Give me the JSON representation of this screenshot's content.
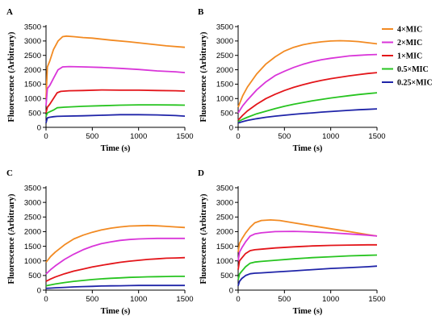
{
  "chart_data": {
    "type": "line",
    "legend": {
      "placement": "top-right",
      "entries": [
        {
          "label": "4×MIC",
          "color": "#F28A22"
        },
        {
          "label": "2×MIC",
          "color": "#D935D9"
        },
        {
          "label": "1×MIC",
          "color": "#E3151A"
        },
        {
          "label": "0.5×MIC",
          "color": "#27C420"
        },
        {
          "label": "0.25×MIC",
          "color": "#1F24A8"
        }
      ]
    },
    "panels": [
      {
        "letter": "A",
        "xlabel": "Time (s)",
        "ylabel": "Fluorescence (Arbitrary)",
        "xlim": [
          0,
          1500
        ],
        "ylim": [
          0,
          3500
        ],
        "xticks": [
          "0",
          "500",
          "1000",
          "1500"
        ],
        "yticks": [
          "0",
          "500",
          "1000",
          "1500",
          "2000",
          "2500",
          "3000",
          "3500"
        ],
        "series": [
          {
            "color": "#F28A22",
            "x": [
              0,
              15,
              40,
              80,
              130,
              180,
              220,
              300,
              400,
              500,
              700,
              900,
              1100,
              1300,
              1500
            ],
            "y": [
              1000,
              2100,
              2300,
              2700,
              3000,
              3150,
              3170,
              3150,
              3120,
              3100,
              3030,
              2970,
              2900,
              2830,
              2780
            ]
          },
          {
            "color": "#D935D9",
            "x": [
              0,
              15,
              40,
              80,
              130,
              180,
              250,
              400,
              600,
              800,
              1000,
              1200,
              1400,
              1500
            ],
            "y": [
              750,
              1350,
              1450,
              1700,
              2000,
              2100,
              2110,
              2100,
              2080,
              2050,
              2010,
              1960,
              1930,
              1900
            ]
          },
          {
            "color": "#E3151A",
            "x": [
              0,
              15,
              40,
              80,
              120,
              160,
              250,
              400,
              600,
              800,
              1000,
              1200,
              1400,
              1500
            ],
            "y": [
              500,
              700,
              800,
              1000,
              1200,
              1250,
              1270,
              1280,
              1300,
              1290,
              1290,
              1280,
              1270,
              1260
            ]
          },
          {
            "color": "#27C420",
            "x": [
              0,
              15,
              40,
              80,
              120,
              200,
              400,
              600,
              800,
              1000,
              1200,
              1400,
              1500
            ],
            "y": [
              380,
              500,
              540,
              600,
              680,
              700,
              730,
              750,
              770,
              780,
              780,
              775,
              770
            ]
          },
          {
            "color": "#1F24A8",
            "x": [
              0,
              15,
              40,
              80,
              120,
              200,
              400,
              600,
              800,
              1000,
              1200,
              1400,
              1500
            ],
            "y": [
              150,
              330,
              350,
              370,
              380,
              390,
              400,
              420,
              440,
              440,
              430,
              410,
              390
            ]
          }
        ]
      },
      {
        "letter": "B",
        "xlabel": "Time (s)",
        "ylabel": "Fluorescence (Arbitrary)",
        "xlim": [
          0,
          1500
        ],
        "ylim": [
          0,
          3500
        ],
        "xticks": [
          "0",
          "500",
          "1000",
          "1500"
        ],
        "yticks": [
          "0",
          "500",
          "1000",
          "1500",
          "2000",
          "2500",
          "3000",
          "3500"
        ],
        "series": [
          {
            "color": "#F28A22",
            "x": [
              0,
              50,
              100,
              200,
              300,
              400,
              500,
              600,
              700,
              800,
              900,
              1000,
              1100,
              1200,
              1300,
              1400,
              1500
            ],
            "y": [
              700,
              1100,
              1400,
              1850,
              2200,
              2450,
              2650,
              2780,
              2870,
              2930,
              2970,
              3000,
              3010,
              3000,
              2980,
              2940,
              2900
            ]
          },
          {
            "color": "#D935D9",
            "x": [
              0,
              50,
              100,
              200,
              300,
              400,
              500,
              600,
              700,
              800,
              900,
              1000,
              1100,
              1200,
              1300,
              1400,
              1500
            ],
            "y": [
              500,
              750,
              950,
              1300,
              1580,
              1800,
              1950,
              2080,
              2190,
              2280,
              2350,
              2400,
              2440,
              2480,
              2500,
              2520,
              2530
            ]
          },
          {
            "color": "#E3151A",
            "x": [
              0,
              50,
              100,
              200,
              300,
              400,
              500,
              600,
              700,
              800,
              900,
              1000,
              1100,
              1200,
              1300,
              1400,
              1500
            ],
            "y": [
              250,
              420,
              570,
              800,
              1000,
              1150,
              1280,
              1390,
              1480,
              1560,
              1630,
              1690,
              1740,
              1790,
              1830,
              1870,
              1900
            ]
          },
          {
            "color": "#27C420",
            "x": [
              0,
              50,
              100,
              200,
              300,
              400,
              500,
              600,
              700,
              800,
              900,
              1000,
              1100,
              1200,
              1300,
              1400,
              1500
            ],
            "y": [
              200,
              280,
              350,
              470,
              560,
              650,
              730,
              800,
              860,
              920,
              970,
              1020,
              1060,
              1100,
              1140,
              1170,
              1200
            ]
          },
          {
            "color": "#1F24A8",
            "x": [
              0,
              50,
              100,
              200,
              300,
              400,
              500,
              600,
              700,
              800,
              900,
              1000,
              1100,
              1200,
              1300,
              1400,
              1500
            ],
            "y": [
              150,
              200,
              240,
              300,
              350,
              390,
              420,
              450,
              480,
              500,
              530,
              550,
              570,
              590,
              610,
              625,
              640
            ]
          }
        ]
      },
      {
        "letter": "C",
        "xlabel": "Time (s)",
        "ylabel": "Fluorescence (Arbitrary)",
        "xlim": [
          0,
          1500
        ],
        "ylim": [
          0,
          3500
        ],
        "xticks": [
          "0",
          "500",
          "1000",
          "1500"
        ],
        "yticks": [
          "0",
          "500",
          "1000",
          "1500",
          "2000",
          "2500",
          "3000",
          "3500"
        ],
        "series": [
          {
            "color": "#F28A22",
            "x": [
              0,
              50,
              100,
              200,
              300,
              400,
              500,
              600,
              700,
              800,
              900,
              1000,
              1100,
              1200,
              1300,
              1400,
              1500
            ],
            "y": [
              950,
              1150,
              1300,
              1550,
              1750,
              1880,
              1980,
              2060,
              2120,
              2160,
              2190,
              2200,
              2210,
              2200,
              2180,
              2160,
              2140
            ]
          },
          {
            "color": "#D935D9",
            "x": [
              0,
              50,
              100,
              200,
              300,
              400,
              500,
              600,
              700,
              800,
              900,
              1000,
              1100,
              1200,
              1300,
              1400,
              1500
            ],
            "y": [
              550,
              700,
              830,
              1050,
              1230,
              1380,
              1500,
              1590,
              1650,
              1700,
              1730,
              1750,
              1760,
              1770,
              1770,
              1770,
              1770
            ]
          },
          {
            "color": "#E3151A",
            "x": [
              0,
              50,
              100,
              200,
              300,
              400,
              500,
              600,
              700,
              800,
              900,
              1000,
              1100,
              1200,
              1300,
              1400,
              1500
            ],
            "y": [
              300,
              380,
              450,
              560,
              650,
              720,
              790,
              850,
              900,
              950,
              990,
              1020,
              1050,
              1070,
              1090,
              1100,
              1110
            ]
          },
          {
            "color": "#27C420",
            "x": [
              0,
              50,
              100,
              200,
              300,
              400,
              500,
              600,
              700,
              800,
              900,
              1000,
              1100,
              1200,
              1300,
              1400,
              1500
            ],
            "y": [
              150,
              180,
              210,
              260,
              300,
              330,
              360,
              385,
              405,
              420,
              435,
              445,
              455,
              460,
              465,
              470,
              470
            ]
          },
          {
            "color": "#1F24A8",
            "x": [
              0,
              50,
              100,
              200,
              300,
              400,
              500,
              600,
              700,
              800,
              900,
              1000,
              1100,
              1200,
              1300,
              1400,
              1500
            ],
            "y": [
              60,
              70,
              80,
              95,
              110,
              120,
              130,
              140,
              145,
              150,
              155,
              160,
              160,
              160,
              160,
              160,
              160
            ]
          }
        ]
      },
      {
        "letter": "D",
        "xlabel": "Time (s)",
        "ylabel": "Fluorescence (Arbitrary)",
        "xlim": [
          0,
          1500
        ],
        "ylim": [
          0,
          3500
        ],
        "xticks": [
          "0",
          "500",
          "1000",
          "1500"
        ],
        "yticks": [
          "0",
          "500",
          "1000",
          "1500",
          "2000",
          "2500",
          "3000",
          "3500"
        ],
        "series": [
          {
            "color": "#F28A22",
            "x": [
              0,
              15,
              40,
              80,
              130,
              180,
              250,
              350,
              450,
              600,
              800,
              1000,
              1200,
              1400,
              1500
            ],
            "y": [
              1300,
              1600,
              1750,
              1950,
              2150,
              2300,
              2380,
              2400,
              2380,
              2300,
              2200,
              2100,
              2000,
              1900,
              1850
            ]
          },
          {
            "color": "#D935D9",
            "x": [
              0,
              15,
              40,
              80,
              130,
              180,
              250,
              400,
              600,
              800,
              1000,
              1200,
              1400,
              1500
            ],
            "y": [
              1000,
              1300,
              1450,
              1650,
              1850,
              1920,
              1960,
              2000,
              2010,
              1990,
              1960,
              1920,
              1880,
              1850
            ]
          },
          {
            "color": "#E3151A",
            "x": [
              0,
              15,
              40,
              80,
              130,
              180,
              250,
              400,
              600,
              800,
              1000,
              1200,
              1400,
              1500
            ],
            "y": [
              700,
              1000,
              1100,
              1250,
              1350,
              1380,
              1400,
              1440,
              1480,
              1510,
              1530,
              1540,
              1550,
              1550
            ]
          },
          {
            "color": "#27C420",
            "x": [
              0,
              15,
              40,
              80,
              130,
              180,
              250,
              400,
              600,
              800,
              1000,
              1200,
              1400,
              1500
            ],
            "y": [
              350,
              550,
              650,
              800,
              920,
              960,
              980,
              1020,
              1070,
              1110,
              1140,
              1170,
              1190,
              1200
            ]
          },
          {
            "color": "#1F24A8",
            "x": [
              0,
              15,
              40,
              80,
              130,
              180,
              250,
              400,
              600,
              800,
              1000,
              1200,
              1400,
              1500
            ],
            "y": [
              150,
              300,
              400,
              500,
              560,
              580,
              590,
              620,
              660,
              700,
              740,
              770,
              800,
              820
            ]
          }
        ]
      }
    ]
  }
}
